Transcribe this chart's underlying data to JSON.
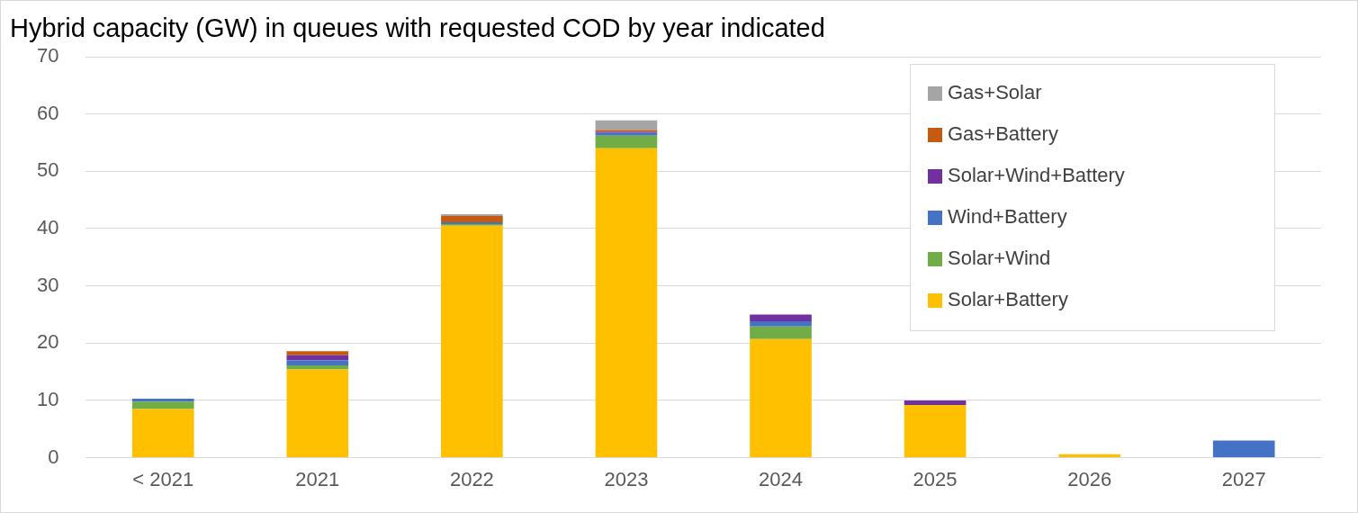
{
  "chart_data": {
    "type": "bar",
    "title": "Hybrid capacity (GW) in queues with requested COD by year indicated",
    "categories": [
      "< 2021",
      "2021",
      "2022",
      "2023",
      "2024",
      "2025",
      "2026",
      "2027"
    ],
    "stacked": true,
    "series": [
      {
        "name": "Solar+Battery",
        "color": "#ffc000",
        "values": [
          8.5,
          15.4,
          40.5,
          54.0,
          20.7,
          9.2,
          0.6,
          0
        ]
      },
      {
        "name": "Solar+Wind",
        "color": "#70ad47",
        "values": [
          1.3,
          0.7,
          0.3,
          2.2,
          2.2,
          0,
          0,
          0
        ]
      },
      {
        "name": "Wind+Battery",
        "color": "#4472c4",
        "values": [
          0.5,
          0.9,
          0.3,
          0.5,
          0.9,
          0,
          0,
          3.0
        ]
      },
      {
        "name": "Solar+Wind+Battery",
        "color": "#7030a0",
        "values": [
          0,
          0.9,
          0,
          0.2,
          1.2,
          0.8,
          0,
          0
        ]
      },
      {
        "name": "Gas+Battery",
        "color": "#c55a11",
        "values": [
          0,
          0.7,
          1.1,
          0.3,
          0,
          0,
          0,
          0
        ]
      },
      {
        "name": "Gas+Solar",
        "color": "#a5a5a5",
        "values": [
          0,
          0,
          0.3,
          1.7,
          0,
          0,
          0,
          0
        ]
      }
    ],
    "ylim": [
      0,
      70
    ],
    "yticks": [
      0,
      10,
      20,
      30,
      40,
      50,
      60,
      70
    ],
    "grid": "y",
    "legend": "top right"
  }
}
